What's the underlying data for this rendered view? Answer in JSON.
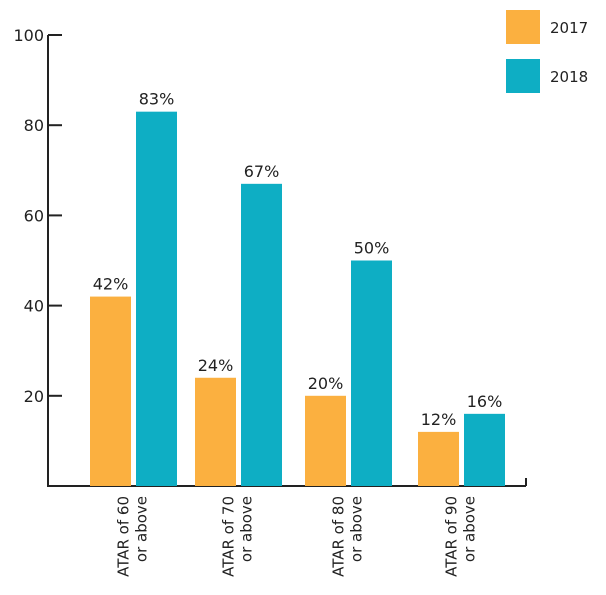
{
  "chart_data": {
    "type": "bar",
    "categories": [
      [
        "ATAR of 60",
        "or above"
      ],
      [
        "ATAR of 70",
        "or above"
      ],
      [
        "ATAR of 80",
        "or above"
      ],
      [
        "ATAR of 90",
        "or above"
      ]
    ],
    "series": [
      {
        "name": "2017",
        "color": "#FBB040",
        "values": [
          42,
          24,
          20,
          12
        ],
        "labels": [
          "42%",
          "24%",
          "20%",
          "12%"
        ]
      },
      {
        "name": "2018",
        "color": "#0EAEC4",
        "values": [
          83,
          67,
          50,
          16
        ],
        "labels": [
          "83%",
          "67%",
          "50%",
          "16%"
        ]
      }
    ],
    "ylim": [
      0,
      100
    ],
    "yticks": [
      20,
      40,
      60,
      80,
      100
    ],
    "grid": false,
    "legend_position": "top-right"
  }
}
